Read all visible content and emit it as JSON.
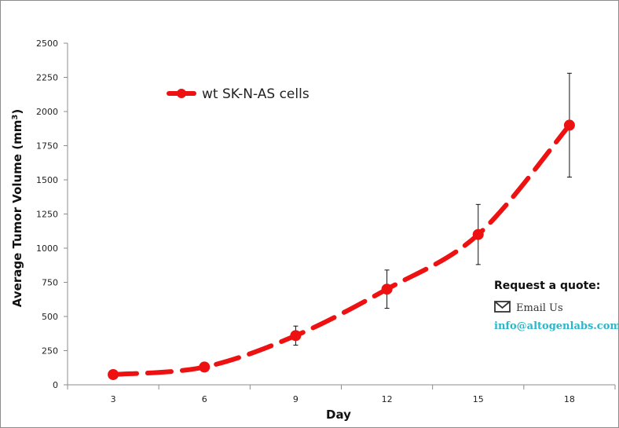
{
  "chart_data": {
    "type": "line",
    "xlabel": "Day",
    "ylabel": "Average Tumor Volume (mm",
    "ylabel_superscript": "3",
    "ylabel_suffix": ")",
    "x": [
      3,
      6,
      9,
      12,
      15,
      18
    ],
    "x_tick_labels": [
      "3",
      "6",
      "9",
      "12",
      "15",
      "18"
    ],
    "ylim": [
      0,
      2500
    ],
    "y_ticks": [
      0,
      250,
      500,
      750,
      1000,
      1250,
      1500,
      1750,
      2000,
      2250,
      2500
    ],
    "y_tick_labels": [
      "0",
      "250",
      "500",
      "750",
      "1000",
      "1250",
      "1500",
      "1750",
      "2000",
      "2250",
      "2500"
    ],
    "series": [
      {
        "name": "wt SK-N-AS cells",
        "values": [
          75,
          130,
          360,
          700,
          1100,
          1900
        ],
        "error": [
          0,
          0,
          70,
          140,
          220,
          380
        ],
        "color": "#ee1111",
        "line_style": "dashed"
      }
    ],
    "legend_position": "top-left",
    "grid": false
  },
  "quote": {
    "title": "Request a quote:",
    "email_label": "Email Us",
    "email_address": "info@altogenlabs.com",
    "accent_color": "#2bb6c9",
    "icon": "envelope-icon"
  }
}
